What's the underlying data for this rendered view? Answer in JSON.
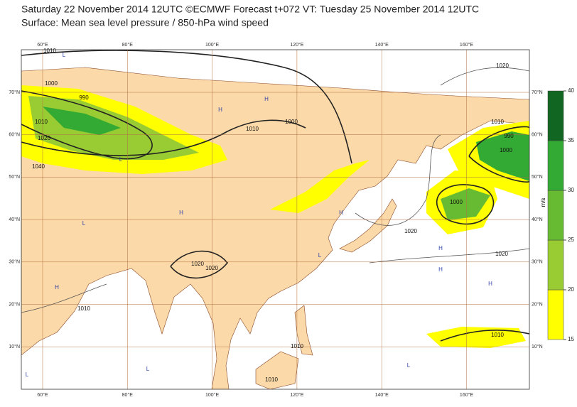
{
  "header": {
    "title": "Saturday 22 November 2014 12UTC ©ECMWF Forecast t+072 VT: Tuesday 25 November 2014 12UTC",
    "subtitle": "Surface: Mean sea level pressure / 850-hPa wind speed"
  },
  "lon_labels": [
    "60°E",
    "80°E",
    "100°E",
    "120°E",
    "140°E",
    "160°E"
  ],
  "lat_labels": [
    "70°N",
    "60°N",
    "50°N",
    "40°N",
    "30°N",
    "20°N",
    "10°N"
  ],
  "isobar_labels": [
    "1010",
    "1000",
    "990",
    "1010",
    "1020",
    "1040",
    "1010",
    "1000",
    "1000",
    "1020",
    "1020",
    "1020",
    "1010",
    "990",
    "1000",
    "1020",
    "1020",
    "1010",
    "1010",
    "1010",
    "1010"
  ],
  "pressure_markers": [
    "H",
    "H",
    "H",
    "L",
    "L",
    "H",
    "H",
    "L",
    "H",
    "L",
    "H",
    "L",
    "H",
    "L",
    "L"
  ],
  "colorbar": {
    "unit": "m/s",
    "ticks": [
      15,
      20,
      25,
      30,
      35,
      40
    ],
    "colors": [
      "#ffff00",
      "#99cc33",
      "#66bb33",
      "#33aa33",
      "#116622"
    ]
  }
}
